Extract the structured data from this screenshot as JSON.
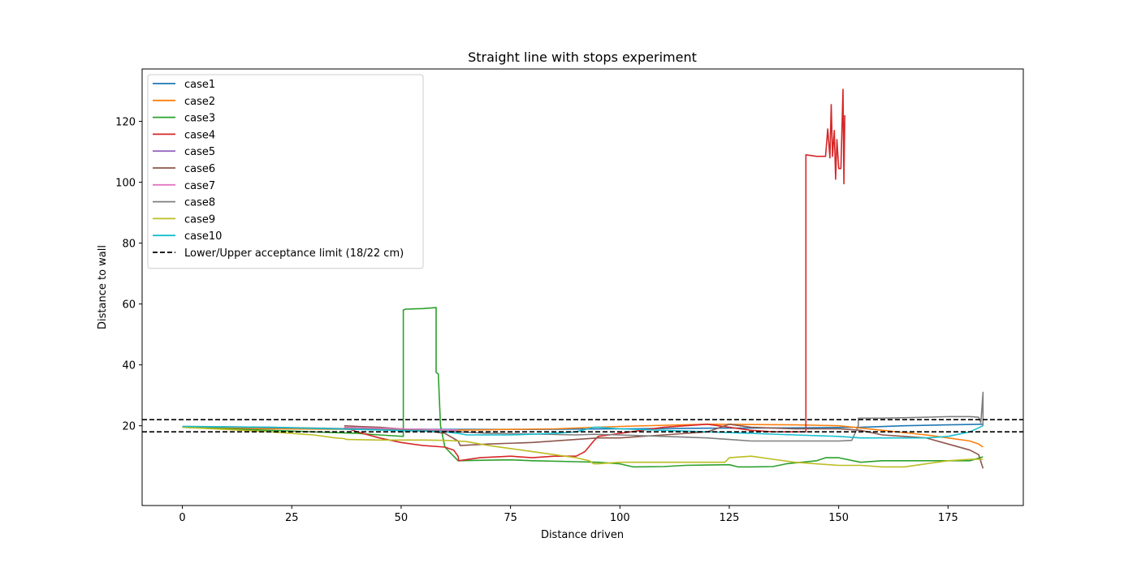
{
  "chart_data": {
    "type": "line",
    "title": "Straight line with stops experiment",
    "xlabel": "Distance driven",
    "ylabel": "Distance to wall",
    "xlim": [
      -9.2,
      192.2
    ],
    "ylim": [
      -6.2,
      137.2
    ],
    "xticks": [
      0,
      25,
      50,
      75,
      100,
      125,
      150,
      175
    ],
    "yticks": [
      20,
      40,
      60,
      80,
      100,
      120
    ],
    "grid": false,
    "legend_position": "top-left",
    "series": [
      {
        "name": "case1",
        "color": "#1f77b4",
        "x": [
          0,
          20,
          40,
          60,
          80,
          100,
          120,
          140,
          155,
          165,
          175,
          183
        ],
        "y": [
          19.5,
          19.2,
          19.0,
          18.8,
          18.8,
          19.0,
          19.2,
          19.3,
          19.5,
          20.0,
          20.3,
          20.5
        ]
      },
      {
        "name": "case2",
        "color": "#ff7f0e",
        "x": [
          0,
          20,
          40,
          60,
          75,
          85,
          100,
          120,
          140,
          150,
          160,
          170,
          175,
          180,
          182,
          183
        ],
        "y": [
          19.5,
          19.0,
          18.8,
          18.5,
          18.8,
          19.0,
          19.8,
          20.5,
          20.3,
          20.0,
          18.5,
          17.0,
          16.0,
          15.0,
          14.0,
          13.0
        ]
      },
      {
        "name": "case3",
        "color": "#2ca02c",
        "x": [
          0,
          20,
          40,
          45,
          50.5,
          50.5,
          51,
          55,
          58,
          58,
          58.5,
          59,
          60,
          62,
          63,
          70,
          75,
          80,
          90,
          95,
          100,
          103,
          110,
          115,
          120,
          125,
          127,
          130,
          135,
          138,
          145,
          147,
          150,
          155,
          160,
          170,
          180,
          183
        ],
        "y": [
          19.5,
          18.5,
          17.5,
          17.0,
          16.5,
          58.0,
          58.3,
          58.5,
          58.8,
          37.5,
          37.0,
          20.0,
          13.0,
          10.0,
          8.5,
          8.7,
          8.8,
          8.5,
          8.2,
          8.0,
          7.5,
          6.5,
          6.6,
          7.0,
          7.1,
          7.2,
          6.5,
          6.5,
          6.6,
          7.5,
          8.5,
          9.5,
          9.5,
          8.0,
          8.5,
          8.5,
          8.5,
          9.8
        ]
      },
      {
        "name": "case4",
        "color": "#d62728",
        "x": [
          37,
          40,
          45,
          50,
          55,
          60,
          62,
          63,
          63.2,
          68,
          75,
          80,
          85,
          90,
          92,
          94,
          95,
          100,
          105,
          110,
          120,
          125,
          130,
          135,
          140,
          142.5,
          142.5,
          145,
          147,
          147.5,
          148,
          148.3,
          148.6,
          149,
          149.3,
          149.6,
          150,
          150.5,
          151,
          151.2,
          151.4
        ],
        "y": [
          19.5,
          18.0,
          16.0,
          14.5,
          13.5,
          13.0,
          12.0,
          10.0,
          8.5,
          9.5,
          10.0,
          9.5,
          10.0,
          10.0,
          11.5,
          15.0,
          16.5,
          17.5,
          18.5,
          19.5,
          20.5,
          19.5,
          18.5,
          18.0,
          18.0,
          18.0,
          109.0,
          108.5,
          108.5,
          117.5,
          108.0,
          125.5,
          108.5,
          117.0,
          101.0,
          114.0,
          104.5,
          104.5,
          130.5,
          99.5,
          122.0
        ]
      },
      {
        "name": "case5",
        "color": "#9467bd",
        "x": [
          37,
          45,
          50,
          57,
          60,
          63
        ],
        "y": [
          19.0,
          18.8,
          18.6,
          18.4,
          18.3,
          18.2
        ]
      },
      {
        "name": "case6",
        "color": "#8c564b",
        "x": [
          37,
          40,
          45,
          50,
          55,
          60,
          63,
          63.5,
          70,
          80,
          90,
          95,
          100,
          110,
          120,
          125,
          130,
          140,
          150,
          155,
          160,
          165,
          170,
          175,
          180,
          182,
          183
        ],
        "y": [
          20.0,
          19.8,
          19.5,
          19.0,
          18.5,
          17.5,
          15.0,
          13.5,
          14.0,
          14.5,
          15.5,
          16.0,
          16.0,
          17.0,
          18.0,
          20.5,
          19.5,
          19.0,
          19.0,
          18.5,
          17.0,
          16.5,
          16.0,
          14.0,
          12.0,
          10.5,
          6.0
        ]
      },
      {
        "name": "case7",
        "color": "#e377c2",
        "x": [
          37,
          45,
          55,
          63
        ],
        "y": [
          19.5,
          19.2,
          18.8,
          18.6
        ]
      },
      {
        "name": "case8",
        "color": "#7f7f7f",
        "x": [
          0,
          20,
          40,
          55,
          63,
          70,
          80,
          90,
          94,
          100,
          110,
          120,
          125,
          130,
          140,
          150,
          153,
          154.5,
          154.5,
          160,
          170,
          175,
          180,
          182,
          182.5,
          183,
          183
        ],
        "y": [
          19.8,
          19.5,
          19.0,
          18.5,
          18.0,
          17.5,
          17.3,
          17.0,
          17.2,
          17.0,
          16.5,
          16.0,
          15.5,
          15.0,
          15.0,
          15.0,
          15.2,
          20.0,
          22.5,
          22.5,
          22.8,
          23.0,
          23.0,
          22.8,
          21.0,
          31.0,
          20.0
        ]
      },
      {
        "name": "case9",
        "color": "#bcbd22",
        "x": [
          0,
          10,
          20,
          30,
          35,
          37,
          37.5,
          45,
          55,
          60,
          63,
          65,
          70,
          75,
          80,
          85,
          90,
          93,
          94,
          95,
          100,
          110,
          120,
          124,
          125,
          130,
          135,
          140,
          150,
          155,
          160,
          165,
          170,
          175,
          180,
          183
        ],
        "y": [
          19.5,
          18.8,
          18.0,
          17.0,
          16.0,
          15.8,
          15.5,
          15.3,
          15.3,
          15.2,
          15.0,
          14.8,
          13.5,
          12.5,
          11.5,
          10.5,
          9.5,
          8.5,
          7.5,
          7.5,
          8.0,
          8.0,
          8.0,
          8.0,
          9.5,
          10.0,
          9.0,
          8.0,
          7.0,
          7.0,
          6.5,
          6.5,
          7.5,
          8.5,
          9.0,
          9.0
        ]
      },
      {
        "name": "case10",
        "color": "#17becf",
        "x": [
          0,
          20,
          40,
          60,
          63,
          65,
          75,
          85,
          90,
          94,
          95,
          100,
          110,
          120,
          130,
          140,
          150,
          155,
          160,
          165,
          170,
          175,
          180,
          183
        ],
        "y": [
          19.8,
          19.5,
          18.8,
          18.0,
          17.5,
          17.0,
          17.0,
          17.5,
          18.0,
          19.5,
          19.5,
          19.0,
          18.5,
          18.0,
          17.5,
          17.0,
          16.5,
          16.0,
          16.0,
          16.0,
          16.0,
          16.5,
          18.0,
          20.0
        ]
      }
    ],
    "reference_lines": {
      "name": "Lower/Upper acceptance limit (18/22 cm)",
      "color": "#000000",
      "style": "dashed",
      "y": [
        18,
        22
      ]
    }
  }
}
